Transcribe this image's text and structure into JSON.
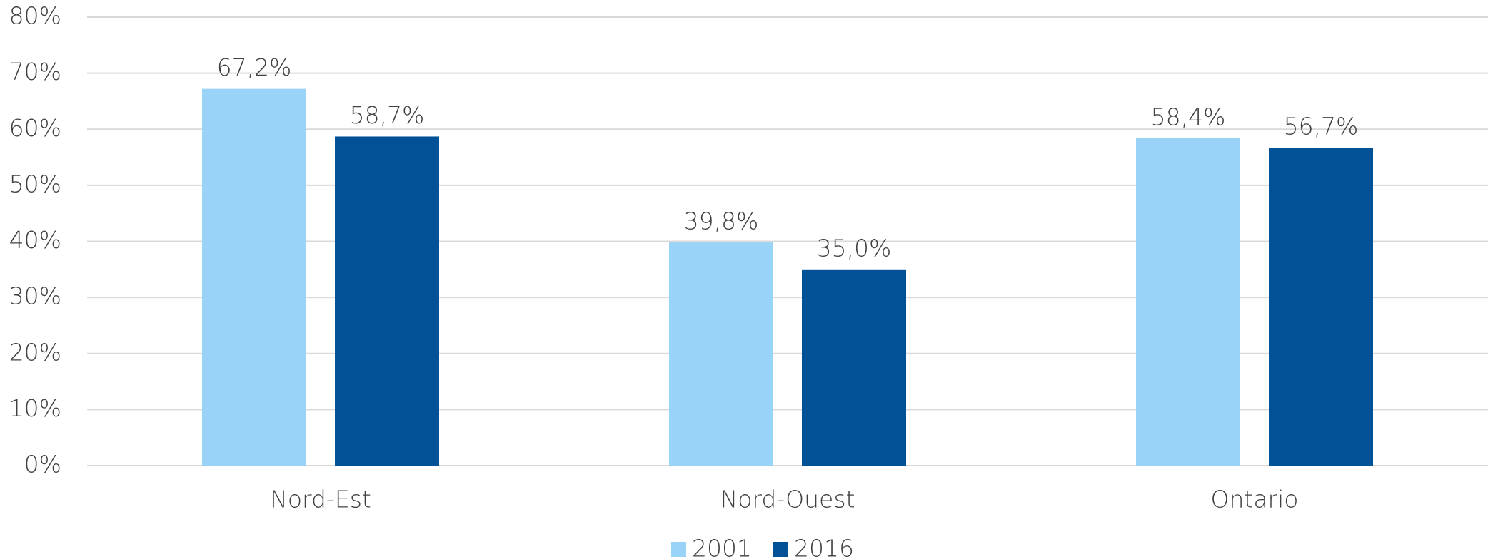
{
  "chart_data": {
    "type": "bar",
    "categories": [
      "Nord-Est",
      "Nord-Ouest",
      "Ontario"
    ],
    "series": [
      {
        "name": "2001",
        "color": "#99d3f7",
        "values": [
          67.2,
          39.8,
          58.4
        ],
        "value_labels": [
          "67,2%",
          "39,8%",
          "58,4%"
        ]
      },
      {
        "name": "2016",
        "color": "#005195",
        "values": [
          58.7,
          35.0,
          56.7
        ],
        "value_labels": [
          "58,7%",
          "35,0%",
          "56,7%"
        ]
      }
    ],
    "ylim": [
      0,
      80
    ],
    "yticks": [
      {
        "value": 0,
        "label": "0%"
      },
      {
        "value": 10,
        "label": "10%"
      },
      {
        "value": 20,
        "label": "20%"
      },
      {
        "value": 30,
        "label": "30%"
      },
      {
        "value": 40,
        "label": "40%"
      },
      {
        "value": 50,
        "label": "50%"
      },
      {
        "value": 60,
        "label": "60%"
      },
      {
        "value": 70,
        "label": "70%"
      },
      {
        "value": 80,
        "label": "80%"
      }
    ],
    "grid": true,
    "legend": "bottom"
  }
}
